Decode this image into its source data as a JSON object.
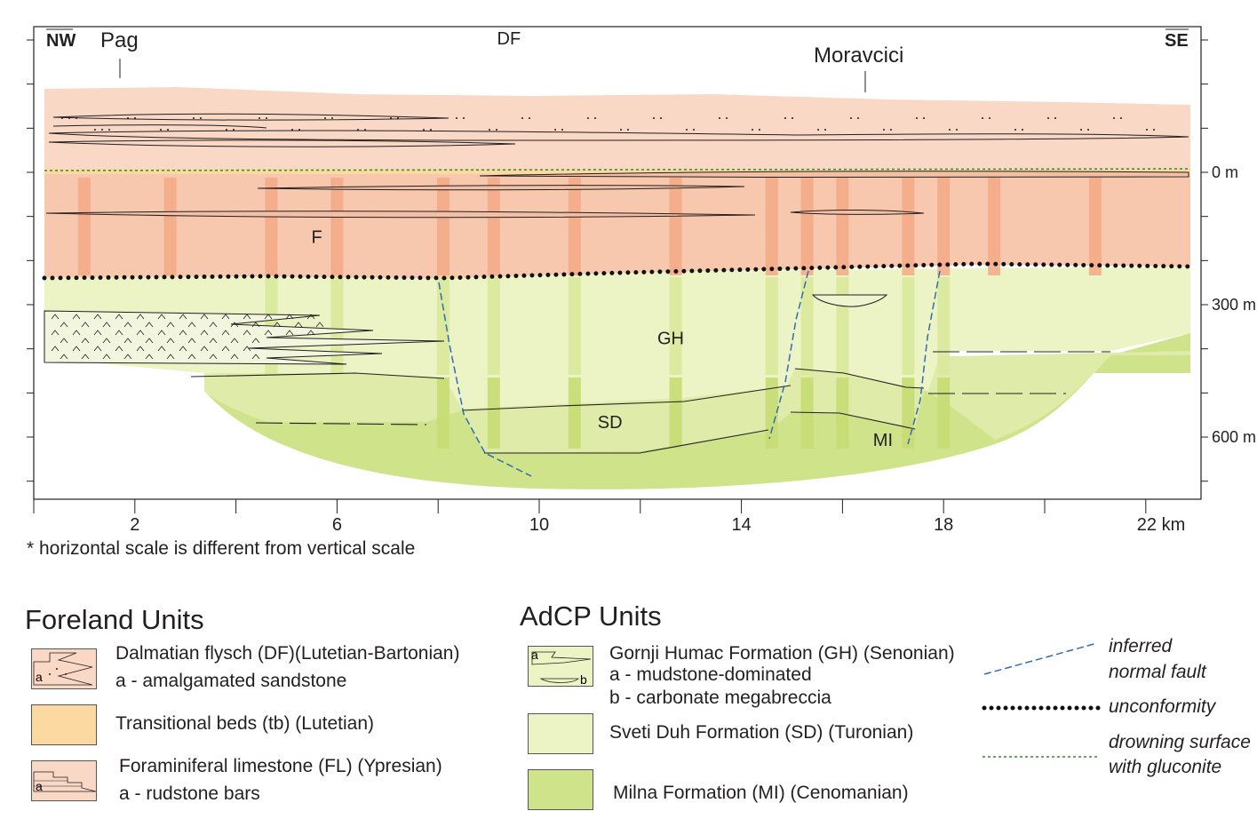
{
  "colors": {
    "df": "#f9d8c5",
    "tb": "#fbd9a1",
    "fl": "#f7c8ae",
    "fl_bar": "#f3a986",
    "gh": "#ecf3c4",
    "sd": "#dfeba8",
    "sd_bar": "#c6dc73",
    "mi": "#cfe48a",
    "gh_bar": "#d9e99b",
    "fault": "#2f6db5",
    "unconformity": "#111111",
    "drowning": "#2e8b3a"
  },
  "section": {
    "orientation_left": "NW",
    "orientation_right": "SE",
    "places": [
      {
        "name": "Pag",
        "km": 1.7
      },
      {
        "name": "Moravcici",
        "km": 16.5
      }
    ],
    "unit_labels": [
      {
        "label": "DF",
        "km": 9.4,
        "depth_m": -290
      },
      {
        "label": "F",
        "km": 5.6,
        "depth_m": 160
      },
      {
        "label": "GH",
        "km": 12.6,
        "depth_m": 390
      },
      {
        "label": "SD",
        "km": 11.4,
        "depth_m": 580
      },
      {
        "label": "MI",
        "km": 16.8,
        "depth_m": 620
      }
    ],
    "x_axis": {
      "unit": "km",
      "ticks": [
        0,
        2,
        4,
        6,
        8,
        10,
        12,
        14,
        16,
        18,
        20,
        22
      ],
      "labels": [
        {
          "km": 2,
          "text": "2"
        },
        {
          "km": 6,
          "text": "6"
        },
        {
          "km": 10,
          "text": "10"
        },
        {
          "km": 14,
          "text": "14"
        },
        {
          "km": 18,
          "text": "18"
        },
        {
          "km": 22,
          "text": "22 km"
        }
      ]
    },
    "y_axis": {
      "ticks_m": [
        -600,
        -500,
        -400,
        -300,
        -200,
        -100,
        0,
        100,
        200,
        300,
        400,
        500,
        600,
        700
      ],
      "labels": [
        {
          "m": 0,
          "text": "0 m"
        },
        {
          "m": 300,
          "text": "300 m"
        },
        {
          "m": 600,
          "text": "600 m"
        }
      ]
    },
    "note": "* horizontal scale is different from vertical scale"
  },
  "legend": {
    "foreland_title": "Foreland Units",
    "adcp_title": "AdCP Units",
    "foreland_items": [
      {
        "lines": [
          "Dalmatian flysch (DF)(Lutetian-Bartonian)",
          "a - amalgamated sandstone"
        ],
        "swatch_key": "df",
        "swatch_mark": "a"
      },
      {
        "lines": [
          "Transitional beds (tb) (Lutetian)"
        ],
        "swatch_key": "tb",
        "swatch_mark": ""
      },
      {
        "lines": [
          "Foraminiferal  limestone (FL) (Ypresian)",
          "a - rudstone bars"
        ],
        "swatch_key": "fl",
        "swatch_mark": "a"
      }
    ],
    "adcp_items": [
      {
        "lines": [
          "Gornji Humac Formation (GH) (Senonian)",
          "a - mudstone-dominated",
          "b - carbonate megabreccia"
        ],
        "swatch_key": "gh",
        "marks": [
          "a",
          "b"
        ]
      },
      {
        "lines": [
          "Sveti Duh Formation (SD) (Turonian)"
        ],
        "swatch_key": "gh"
      },
      {
        "lines": [
          "Milna Formation (MI) (Cenomanian)"
        ],
        "swatch_key": "mi"
      }
    ],
    "symbols": [
      {
        "lines": [
          "inferred",
          "normal fault"
        ],
        "style": "fault"
      },
      {
        "lines": [
          "unconformity"
        ],
        "style": "unconformity"
      },
      {
        "lines": [
          "drowning surface",
          "with gluconite"
        ],
        "style": "drowning"
      }
    ]
  }
}
